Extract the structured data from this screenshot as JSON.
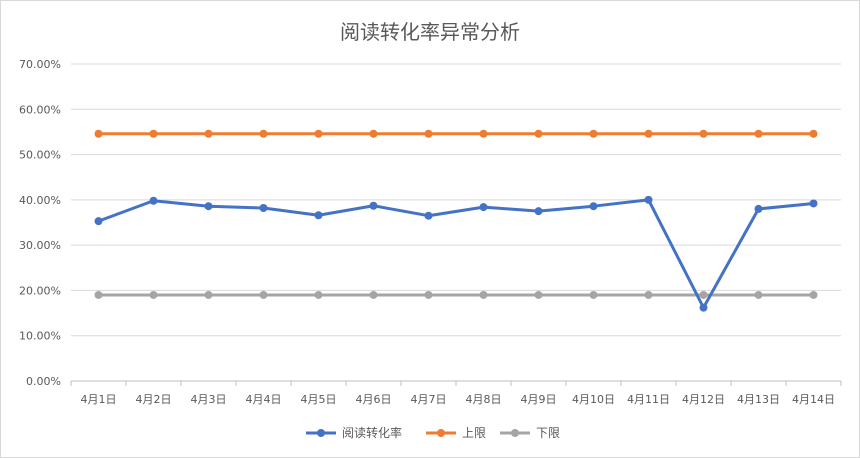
{
  "chart_data": {
    "type": "line",
    "title": "阅读转化率异常分析",
    "categories": [
      "4月1日",
      "4月2日",
      "4月3日",
      "4月4日",
      "4月5日",
      "4月6日",
      "4月7日",
      "4月8日",
      "4月9日",
      "4月10日",
      "4月11日",
      "4月12日",
      "4月13日",
      "4月14日"
    ],
    "y_ticks": [
      "0.00%",
      "10.00%",
      "20.00%",
      "30.00%",
      "40.00%",
      "50.00%",
      "60.00%",
      "70.00%"
    ],
    "ylim": [
      0,
      0.7
    ],
    "grid": true,
    "legend": "bottom",
    "series": [
      {
        "name": "阅读转化率",
        "color": "#4472c4",
        "values": [
          0.353,
          0.398,
          0.386,
          0.382,
          0.366,
          0.387,
          0.365,
          0.384,
          0.375,
          0.386,
          0.4,
          0.162,
          0.38,
          0.392
        ]
      },
      {
        "name": "上限",
        "color": "#ed7d31",
        "values": [
          0.546,
          0.546,
          0.546,
          0.546,
          0.546,
          0.546,
          0.546,
          0.546,
          0.546,
          0.546,
          0.546,
          0.546,
          0.546,
          0.546
        ]
      },
      {
        "name": "下限",
        "color": "#a5a5a5",
        "values": [
          0.19,
          0.19,
          0.19,
          0.19,
          0.19,
          0.19,
          0.19,
          0.19,
          0.19,
          0.19,
          0.19,
          0.19,
          0.19,
          0.19
        ]
      }
    ]
  }
}
